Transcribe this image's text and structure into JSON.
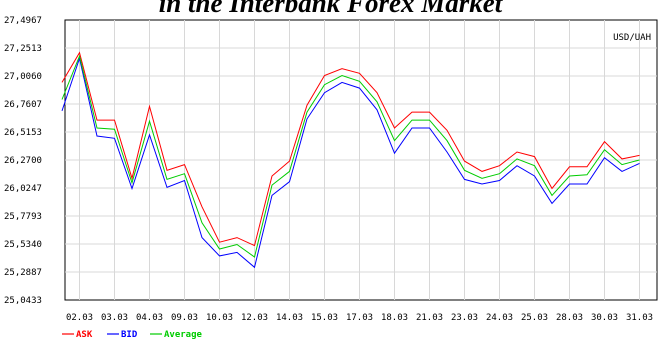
{
  "chart_data": {
    "type": "line",
    "title": "in the Interbank Forex Market",
    "unit_label": "USD/UAH",
    "categories": [
      "",
      "02.03",
      "",
      "03.03",
      "",
      "04.03",
      "",
      "09.03",
      "",
      "10.03",
      "",
      "12.03",
      "",
      "14.03",
      "",
      "15.03",
      "",
      "17.03",
      "",
      "18.03",
      "",
      "21.03",
      "",
      "23.03",
      "",
      "24.03",
      "",
      "25.03",
      "",
      "28.03",
      "",
      "30.03",
      "",
      "31.03"
    ],
    "x_tick_labels": [
      "02.03",
      "03.03",
      "04.03",
      "09.03",
      "10.03",
      "12.03",
      "14.03",
      "15.03",
      "17.03",
      "18.03",
      "21.03",
      "23.03",
      "24.03",
      "25.03",
      "28.03",
      "30.03",
      "31.03"
    ],
    "y_tick_labels": [
      "27,4967",
      "27,2513",
      "27,0060",
      "26,7607",
      "26,5153",
      "26,2700",
      "26,0247",
      "25,7793",
      "25,5340",
      "25,2887",
      "25,0433"
    ],
    "ylim": [
      25.0433,
      27.4967
    ],
    "grid": true,
    "legend_position": "bottom-left",
    "series": [
      {
        "name": "ASK",
        "color": "#ff0000",
        "values": [
          26.95,
          27.21,
          26.62,
          26.62,
          26.11,
          26.74,
          26.18,
          26.23,
          25.86,
          25.55,
          25.59,
          25.52,
          26.13,
          26.26,
          26.75,
          27.01,
          27.07,
          27.03,
          26.86,
          26.55,
          26.69,
          26.69,
          26.53,
          26.26,
          26.17,
          26.22,
          26.34,
          26.3,
          26.02,
          26.21,
          26.21,
          26.43,
          26.28,
          26.31
        ]
      },
      {
        "name": "BID",
        "color": "#0000ff",
        "values": [
          26.7,
          27.16,
          26.48,
          26.46,
          26.02,
          26.49,
          26.03,
          26.09,
          25.59,
          25.43,
          25.46,
          25.33,
          25.96,
          26.08,
          26.63,
          26.86,
          26.95,
          26.9,
          26.71,
          26.33,
          26.55,
          26.55,
          26.34,
          26.1,
          26.06,
          26.09,
          26.22,
          26.13,
          25.89,
          26.06,
          26.06,
          26.29,
          26.17,
          26.24
        ]
      },
      {
        "name": "Average",
        "color": "#00cc00",
        "values": [
          26.8,
          27.18,
          26.55,
          26.54,
          26.07,
          26.61,
          26.1,
          26.15,
          25.72,
          25.49,
          25.53,
          25.42,
          26.05,
          26.17,
          26.69,
          26.93,
          27.01,
          26.96,
          26.78,
          26.44,
          26.62,
          26.62,
          26.44,
          26.18,
          26.11,
          26.15,
          26.28,
          26.22,
          25.96,
          26.13,
          26.14,
          26.36,
          26.23,
          26.27
        ]
      }
    ]
  }
}
